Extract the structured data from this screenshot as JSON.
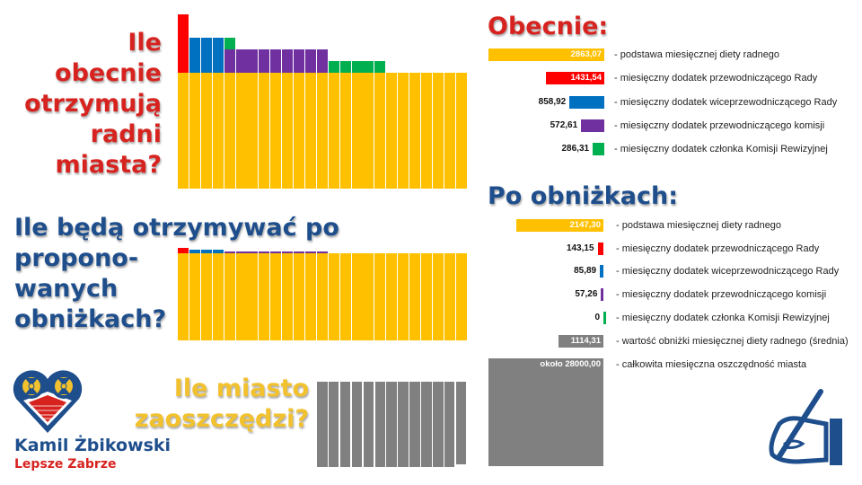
{
  "questions": {
    "current": [
      "Ile",
      "obecnie",
      "otrzymują",
      "radni",
      "miasta?"
    ],
    "after": [
      "Ile będą otrzymywać po",
      "propono-",
      "wanych",
      "obniżkach?"
    ],
    "savings": [
      "Ile miasto",
      "zaoszczędzi?"
    ]
  },
  "branding": {
    "name": "Kamil Żbikowski",
    "party": "Lepsze Zabrze"
  },
  "colors": {
    "base": "#ffc000",
    "chair": "#ff0000",
    "vice": "#0070c0",
    "committee": "#7030a0",
    "audit": "#00b050",
    "savings": "#808080",
    "red_text": "#d7231f",
    "blue_text": "#1e4e8c"
  },
  "legend": {
    "current_title": "Obecnie:",
    "current": [
      {
        "value": "2863,07",
        "label": "- podstawa miesięcznej diety radnego",
        "color": "#ffc000"
      },
      {
        "value": "1431,54",
        "label": "- miesięczny dodatek przewodniczącego Rady",
        "color": "#ff0000"
      },
      {
        "value": "858,92",
        "label": "- miesięczny dodatek wiceprzewodniczącego Rady",
        "color": "#0070c0"
      },
      {
        "value": "572,61",
        "label": "- miesięczny dodatek przewodniczącego komisji",
        "color": "#7030a0"
      },
      {
        "value": "286,31",
        "label": "- miesięczny dodatek członka Komisji Rewizyjnej",
        "color": "#00b050"
      }
    ],
    "after_title": "Po obniżkach:",
    "after": [
      {
        "value": "2147,30",
        "label": "- podstawa miesięcznej diety radnego",
        "color": "#ffc000"
      },
      {
        "value": "143,15",
        "label": "- miesięczny dodatek przewodniczącego Rady",
        "color": "#ff0000"
      },
      {
        "value": "85,89",
        "label": "- miesięczny dodatek wiceprzewodniczącego Rady",
        "color": "#0070c0"
      },
      {
        "value": "57,26",
        "label": "- miesięczny dodatek przewodniczącego komisji",
        "color": "#7030a0"
      },
      {
        "value": "0",
        "label": "- miesięczny dodatek członka Komisji Rewizyjnej",
        "color": "#00b050"
      },
      {
        "value": "1114,31",
        "label": "- wartość obniżki miesięcznej diety radnego (średnia)",
        "color": "#808080"
      },
      {
        "value": "około 28000,00",
        "label": "- całkowita miesięczna oszczędność miasta",
        "color": "#808080"
      }
    ]
  },
  "chart_data": [
    {
      "type": "bar",
      "stacked": true,
      "categories_count": 25,
      "base": 2863.07,
      "bars": [
        [
          "chair"
        ],
        [
          "vice"
        ],
        [
          "vice"
        ],
        [
          "vice"
        ],
        [
          "committee",
          "audit"
        ],
        [
          "committee"
        ],
        [
          "committee"
        ],
        [
          "committee"
        ],
        [
          "committee"
        ],
        [
          "committee"
        ],
        [
          "committee"
        ],
        [
          "committee"
        ],
        [
          "committee"
        ],
        [
          "audit"
        ],
        [
          "audit"
        ],
        [
          "audit"
        ],
        [
          "audit"
        ],
        [
          "audit"
        ],
        [],
        [],
        [],
        [],
        [],
        [],
        []
      ],
      "addons": {
        "chair": 1431.54,
        "vice": 858.92,
        "committee": 572.61,
        "audit": 286.31
      }
    },
    {
      "type": "bar",
      "stacked": true,
      "base": 2147.3,
      "bars": [
        [
          "chair"
        ],
        [
          "vice"
        ],
        [
          "vice"
        ],
        [
          "vice"
        ],
        [
          "committee"
        ],
        [
          "committee"
        ],
        [
          "committee"
        ],
        [
          "committee"
        ],
        [
          "committee"
        ],
        [
          "committee"
        ],
        [
          "committee"
        ],
        [
          "committee"
        ],
        [
          "committee"
        ],
        [],
        [],
        [],
        [],
        [],
        [],
        [],
        [],
        [],
        [],
        [],
        []
      ],
      "addons": {
        "chair": 143.15,
        "vice": 85.89,
        "committee": 57.26,
        "audit": 0
      }
    },
    {
      "type": "bar",
      "values": [
        1,
        1,
        1,
        1,
        1,
        1,
        1,
        1,
        1,
        1,
        1,
        1,
        0.97
      ]
    }
  ]
}
